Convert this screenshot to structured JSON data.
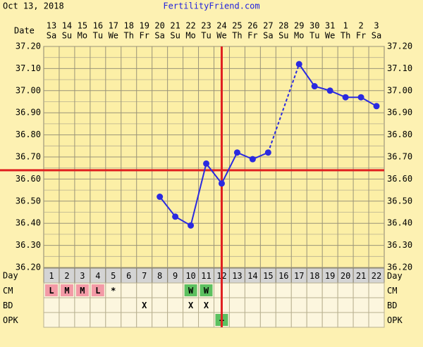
{
  "header": {
    "date": "Oct 13, 2018",
    "site": "FertilityFriend.com"
  },
  "chart_data": {
    "type": "line",
    "date_label": "Date",
    "day_label": "Day",
    "dates": [
      "13",
      "14",
      "15",
      "16",
      "17",
      "18",
      "19",
      "20",
      "21",
      "22",
      "23",
      "24",
      "25",
      "26",
      "27",
      "28",
      "29",
      "30",
      "31",
      "1",
      "2",
      "3"
    ],
    "weekdays": [
      "Sa",
      "Su",
      "Mo",
      "Tu",
      "We",
      "Th",
      "Fr",
      "Sa",
      "Su",
      "Mo",
      "Tu",
      "We",
      "Th",
      "Fr",
      "Sa",
      "Su",
      "Mo",
      "Tu",
      "We",
      "Th",
      "Fr",
      "Sa"
    ],
    "categories": [
      1,
      2,
      3,
      4,
      5,
      6,
      7,
      8,
      9,
      10,
      11,
      12,
      13,
      14,
      15,
      16,
      17,
      18,
      19,
      20,
      21,
      22
    ],
    "values": [
      null,
      null,
      null,
      null,
      null,
      null,
      null,
      36.52,
      36.43,
      36.39,
      36.67,
      36.58,
      36.72,
      36.69,
      36.72,
      null,
      37.12,
      37.02,
      37.0,
      36.97,
      36.97,
      36.93
    ],
    "color": "#2a2ae0",
    "ylim": [
      36.2,
      37.2
    ],
    "yticks": [
      {
        "value": 36.2,
        "label": "36.20"
      },
      {
        "value": 36.3,
        "label": "36.30"
      },
      {
        "value": 36.4,
        "label": "36.40"
      },
      {
        "value": 36.5,
        "label": "36.50"
      },
      {
        "value": 36.6,
        "label": "36.60"
      },
      {
        "value": 36.7,
        "label": "36.70"
      },
      {
        "value": 36.8,
        "label": "36.80"
      },
      {
        "value": 36.9,
        "label": "36.90"
      },
      {
        "value": 37.0,
        "label": "37.00"
      },
      {
        "value": 37.1,
        "label": "37.10"
      },
      {
        "value": 37.2,
        "label": "37.20"
      }
    ],
    "grid": true,
    "coverline": 36.64,
    "ovulation_day": 12,
    "marker_color": "#e02020",
    "rows": [
      {
        "label": "CM",
        "cells": [
          {
            "text": "L",
            "color": "#f39aa6"
          },
          {
            "text": "M",
            "color": "#f39aa6"
          },
          {
            "text": "M",
            "color": "#f39aa6"
          },
          {
            "text": "L",
            "color": "#f39aa6"
          },
          {
            "text": "*"
          },
          null,
          null,
          null,
          null,
          {
            "text": "W",
            "color": "#5cc060"
          },
          {
            "text": "W",
            "color": "#5cc060"
          },
          null,
          null,
          null,
          null,
          null,
          null,
          null,
          null,
          null,
          null,
          null
        ]
      },
      {
        "label": "BD",
        "cells": [
          null,
          null,
          null,
          null,
          null,
          null,
          {
            "text": "X"
          },
          null,
          null,
          {
            "text": "X"
          },
          {
            "text": "X"
          },
          null,
          null,
          null,
          null,
          null,
          null,
          null,
          null,
          null,
          null,
          null
        ]
      },
      {
        "label": "OPK",
        "cells": [
          null,
          null,
          null,
          null,
          null,
          null,
          null,
          null,
          null,
          null,
          null,
          {
            "text": "+",
            "color": "#5cc060"
          },
          null,
          null,
          null,
          null,
          null,
          null,
          null,
          null,
          null,
          null
        ]
      }
    ]
  }
}
